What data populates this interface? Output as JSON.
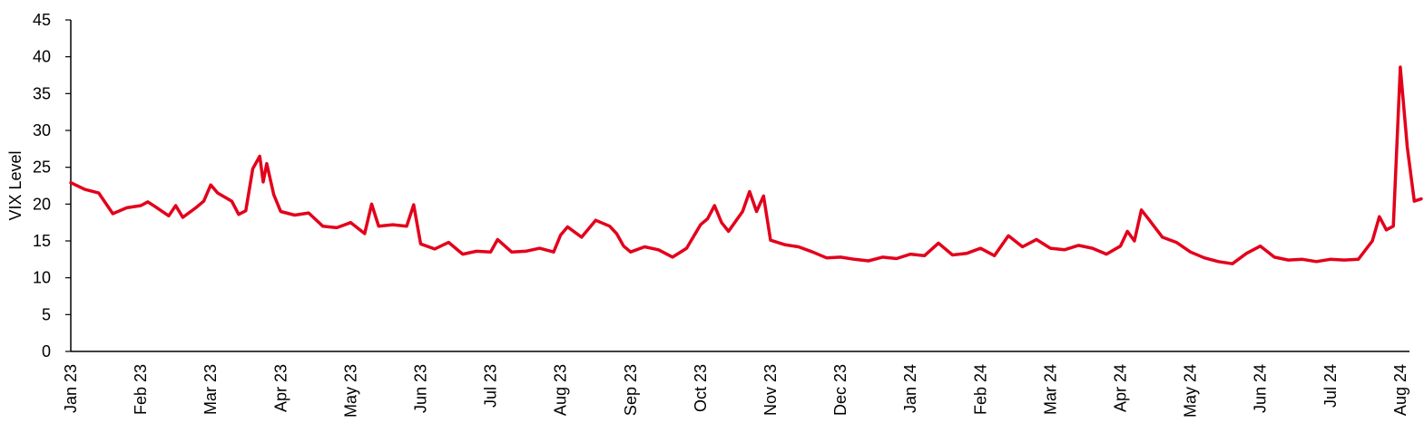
{
  "chart_data": {
    "type": "line",
    "title": "",
    "xlabel": "",
    "ylabel": "VIX Level",
    "ylim": [
      0,
      45
    ],
    "yticks": [
      0,
      5,
      10,
      15,
      20,
      25,
      30,
      35,
      40,
      45
    ],
    "grid": false,
    "legend": "none",
    "x_tick_labels": [
      "Jan 23",
      "Feb 23",
      "Mar 23",
      "Apr 23",
      "May 23",
      "Jun 23",
      "Jul 23",
      "Aug 23",
      "Sep 23",
      "Oct 23",
      "Nov 23",
      "Dec 23",
      "Jan 24",
      "Feb 24",
      "Mar 24",
      "Apr 24",
      "May 24",
      "Jun 24",
      "Jul 24",
      "Aug 24"
    ],
    "series": [
      {
        "color": "#e3001b",
        "points": [
          [
            "Jan 23",
            22.9
          ],
          [
            "Jan 23 +0.2",
            22.0
          ],
          [
            "Jan 23 +0.4",
            21.5
          ],
          [
            "Jan 23 +0.6",
            18.7
          ],
          [
            "Jan 23 +0.8",
            19.5
          ],
          [
            "Feb 23",
            19.8
          ],
          [
            "Feb 23 +0.1",
            20.3
          ],
          [
            "Feb 23 +0.2",
            19.7
          ],
          [
            "Feb 23 +0.4",
            18.4
          ],
          [
            "Feb 23 +0.5",
            19.8
          ],
          [
            "Feb 23 +0.6",
            18.2
          ],
          [
            "Feb 23 +0.8",
            19.6
          ],
          [
            "Feb 23 +0.9",
            20.4
          ],
          [
            "Mar 23",
            22.6
          ],
          [
            "Mar 23 +0.1",
            21.5
          ],
          [
            "Mar 23 +0.3",
            20.4
          ],
          [
            "Mar 23 +0.4",
            18.6
          ],
          [
            "Mar 23 +0.5",
            19.1
          ],
          [
            "Mar 23 +0.6",
            24.8
          ],
          [
            "Mar 23 +0.7",
            26.5
          ],
          [
            "Mar 23 +0.75",
            23.0
          ],
          [
            "Mar 23 +0.8",
            25.5
          ],
          [
            "Mar 23 +0.9",
            21.3
          ],
          [
            "Apr 23",
            19.0
          ],
          [
            "Apr 23 +0.2",
            18.5
          ],
          [
            "Apr 23 +0.4",
            18.8
          ],
          [
            "Apr 23 +0.6",
            17.0
          ],
          [
            "Apr 23 +0.8",
            16.8
          ],
          [
            "May 23",
            17.5
          ],
          [
            "May 23 +0.2",
            16.0
          ],
          [
            "May 23 +0.3",
            20.0
          ],
          [
            "May 23 +0.4",
            17.0
          ],
          [
            "May 23 +0.6",
            17.2
          ],
          [
            "May 23 +0.8",
            17.0
          ],
          [
            "May 23 +0.9",
            19.9
          ],
          [
            "Jun 23",
            14.6
          ],
          [
            "Jun 23 +0.2",
            13.9
          ],
          [
            "Jun 23 +0.4",
            14.8
          ],
          [
            "Jun 23 +0.6",
            13.2
          ],
          [
            "Jun 23 +0.8",
            13.6
          ],
          [
            "Jul 23",
            13.5
          ],
          [
            "Jul 23 +0.1",
            15.2
          ],
          [
            "Jul 23 +0.3",
            13.5
          ],
          [
            "Jul 23 +0.5",
            13.6
          ],
          [
            "Jul 23 +0.7",
            14.0
          ],
          [
            "Jul 23 +0.9",
            13.5
          ],
          [
            "Aug 23",
            15.8
          ],
          [
            "Aug 23 +0.1",
            16.9
          ],
          [
            "Aug 23 +0.3",
            15.5
          ],
          [
            "Aug 23 +0.5",
            17.8
          ],
          [
            "Aug 23 +0.7",
            17.0
          ],
          [
            "Aug 23 +0.8",
            16.0
          ],
          [
            "Aug 23 +0.9",
            14.3
          ],
          [
            "Sep 23",
            13.5
          ],
          [
            "Sep 23 +0.2",
            14.2
          ],
          [
            "Sep 23 +0.4",
            13.8
          ],
          [
            "Sep 23 +0.6",
            12.8
          ],
          [
            "Sep 23 +0.8",
            14.0
          ],
          [
            "Oct 23",
            17.2
          ],
          [
            "Oct 23 +0.1",
            18.0
          ],
          [
            "Oct 23 +0.2",
            19.8
          ],
          [
            "Oct 23 +0.3",
            17.5
          ],
          [
            "Oct 23 +0.4",
            16.3
          ],
          [
            "Oct 23 +0.6",
            19.0
          ],
          [
            "Oct 23 +0.7",
            21.7
          ],
          [
            "Oct 23 +0.8",
            19.0
          ],
          [
            "Oct 23 +0.9",
            21.1
          ],
          [
            "Nov 23",
            15.1
          ],
          [
            "Nov 23 +0.2",
            14.5
          ],
          [
            "Nov 23 +0.4",
            14.2
          ],
          [
            "Nov 23 +0.6",
            13.5
          ],
          [
            "Nov 23 +0.8",
            12.7
          ],
          [
            "Dec 23",
            12.8
          ],
          [
            "Dec 23 +0.2",
            12.5
          ],
          [
            "Dec 23 +0.4",
            12.3
          ],
          [
            "Dec 23 +0.6",
            12.8
          ],
          [
            "Dec 23 +0.8",
            12.6
          ],
          [
            "Jan 24",
            13.2
          ],
          [
            "Jan 24 +0.2",
            13.0
          ],
          [
            "Jan 24 +0.4",
            14.7
          ],
          [
            "Jan 24 +0.6",
            13.1
          ],
          [
            "Jan 24 +0.8",
            13.3
          ],
          [
            "Feb 24",
            14.0
          ],
          [
            "Feb 24 +0.2",
            13.0
          ],
          [
            "Feb 24 +0.4",
            15.7
          ],
          [
            "Feb 24 +0.6",
            14.2
          ],
          [
            "Feb 24 +0.8",
            15.2
          ],
          [
            "Mar 24",
            14.0
          ],
          [
            "Mar 24 +0.2",
            13.8
          ],
          [
            "Mar 24 +0.4",
            14.4
          ],
          [
            "Mar 24 +0.6",
            14.0
          ],
          [
            "Mar 24 +0.8",
            13.2
          ],
          [
            "Apr 24",
            14.3
          ],
          [
            "Apr 24 +0.1",
            16.3
          ],
          [
            "Apr 24 +0.2",
            15.0
          ],
          [
            "Apr 24 +0.3",
            19.2
          ],
          [
            "Apr 24 +0.4",
            18.0
          ],
          [
            "Apr 24 +0.6",
            15.5
          ],
          [
            "Apr 24 +0.8",
            14.8
          ],
          [
            "May 24",
            13.5
          ],
          [
            "May 24 +0.2",
            12.7
          ],
          [
            "May 24 +0.4",
            12.2
          ],
          [
            "May 24 +0.6",
            11.9
          ],
          [
            "May 24 +0.8",
            13.3
          ],
          [
            "Jun 24",
            14.3
          ],
          [
            "Jun 24 +0.2",
            12.8
          ],
          [
            "Jun 24 +0.4",
            12.4
          ],
          [
            "Jun 24 +0.6",
            12.5
          ],
          [
            "Jun 24 +0.8",
            12.2
          ],
          [
            "Jul 24",
            12.5
          ],
          [
            "Jul 24 +0.2",
            12.4
          ],
          [
            "Jul 24 +0.4",
            12.5
          ],
          [
            "Jul 24 +0.6",
            15.0
          ],
          [
            "Jul 24 +0.7",
            18.3
          ],
          [
            "Jul 24 +0.8",
            16.5
          ],
          [
            "Jul 24 +0.9",
            17.0
          ],
          [
            "Aug 24",
            38.6
          ],
          [
            "Aug 24 +0.1",
            27.7
          ],
          [
            "Aug 24 +0.2",
            20.4
          ],
          [
            "Aug 24 +0.3",
            20.7
          ]
        ]
      }
    ]
  }
}
